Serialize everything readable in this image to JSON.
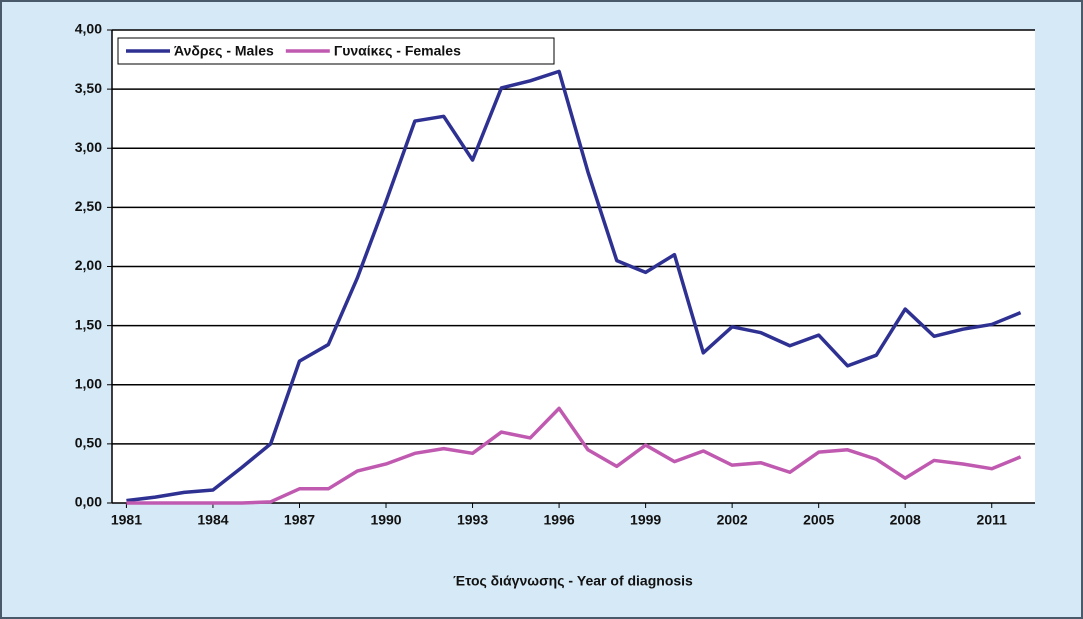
{
  "chart_data": {
    "type": "line",
    "xlabel": "Έτος διάγνωσης - Year of diagnosis",
    "x": [
      1981,
      1982,
      1983,
      1984,
      1985,
      1986,
      1987,
      1988,
      1989,
      1990,
      1991,
      1992,
      1993,
      1994,
      1995,
      1996,
      1997,
      1998,
      1999,
      2000,
      2001,
      2002,
      2003,
      2004,
      2005,
      2006,
      2007,
      2008,
      2009,
      2010,
      2011,
      2012
    ],
    "series": [
      {
        "name": "Άνδρες - Males",
        "color": "#2e3192",
        "values": [
          0.02,
          0.05,
          0.09,
          0.11,
          0.3,
          0.5,
          1.2,
          1.34,
          1.9,
          2.55,
          3.23,
          3.27,
          2.9,
          3.51,
          3.57,
          3.65,
          2.8,
          2.05,
          1.95,
          2.1,
          1.27,
          1.49,
          1.44,
          1.33,
          1.42,
          1.16,
          1.25,
          1.64,
          1.41,
          1.47,
          1.51,
          1.61
        ]
      },
      {
        "name": "Γυναίκες - Females",
        "color": "#c05ab0",
        "values": [
          0.0,
          0.0,
          0.0,
          0.0,
          0.0,
          0.01,
          0.12,
          0.12,
          0.27,
          0.33,
          0.42,
          0.46,
          0.42,
          0.6,
          0.55,
          0.8,
          0.45,
          0.31,
          0.49,
          0.35,
          0.44,
          0.32,
          0.34,
          0.26,
          0.43,
          0.45,
          0.37,
          0.21,
          0.36,
          0.33,
          0.29,
          0.39
        ]
      }
    ],
    "xlim": [
      1980.5,
      2012.5
    ],
    "xticks": [
      1981,
      1984,
      1987,
      1990,
      1993,
      1996,
      1999,
      2002,
      2005,
      2008,
      2011
    ],
    "ylim": [
      0,
      4
    ],
    "yticks": [
      {
        "value": 0,
        "label": "0,00"
      },
      {
        "value": 0.5,
        "label": "0,50"
      },
      {
        "value": 1,
        "label": "1,00"
      },
      {
        "value": 1.5,
        "label": "1,50"
      },
      {
        "value": 2,
        "label": "2,00"
      },
      {
        "value": 2.5,
        "label": "2,50"
      },
      {
        "value": 3,
        "label": "3,00"
      },
      {
        "value": 3.5,
        "label": "3,50"
      },
      {
        "value": 4,
        "label": "4,00"
      }
    ],
    "grid": true,
    "legend": "top-left"
  }
}
